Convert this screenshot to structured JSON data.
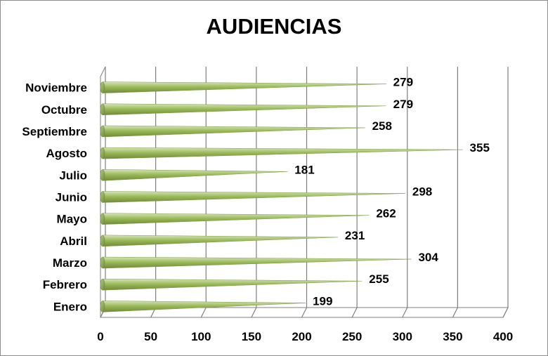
{
  "chart_data": {
    "type": "bar",
    "orientation": "horizontal",
    "title": "AUDIENCIAS",
    "xlabel": "",
    "ylabel": "",
    "categories": [
      "Enero",
      "Febrero",
      "Marzo",
      "Abril",
      "Mayo",
      "Junio",
      "Julio",
      "Agosto",
      "Septiembre",
      "Octubre",
      "Noviembre"
    ],
    "series": [
      {
        "values": [
          199,
          255,
          304,
          231,
          262,
          298,
          181,
          355,
          258,
          279,
          279
        ]
      }
    ],
    "xlim": [
      0,
      400
    ],
    "xticks": [
      "0",
      "50",
      "100",
      "150",
      "200",
      "250",
      "300",
      "350",
      "400"
    ],
    "grid": true,
    "legend": "none",
    "data_labels": true,
    "bar_shape": "cone",
    "colors": {
      "bar": "#9bbb59",
      "bar_light": "#d7e4bd",
      "bar_dark": "#6f8a36",
      "grid": "#7f7f7f"
    }
  }
}
